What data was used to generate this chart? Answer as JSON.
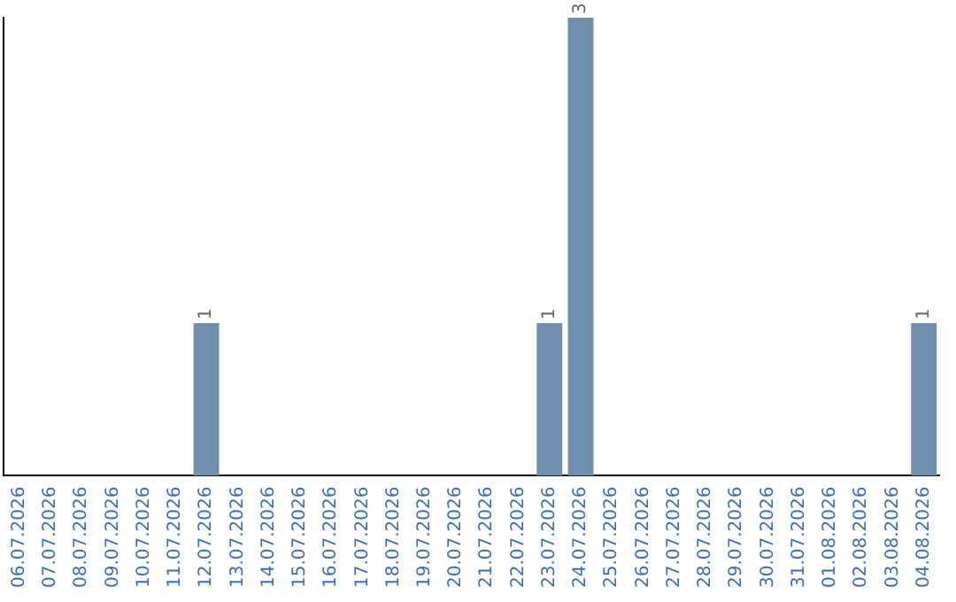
{
  "chart_data": {
    "type": "bar",
    "categories": [
      "06.07.2026",
      "07.07.2026",
      "08.07.2026",
      "09.07.2026",
      "10.07.2026",
      "11.07.2026",
      "12.07.2026",
      "13.07.2026",
      "14.07.2026",
      "15.07.2026",
      "16.07.2026",
      "17.07.2026",
      "18.07.2026",
      "19.07.2026",
      "20.07.2026",
      "21.07.2026",
      "22.07.2026",
      "23.07.2026",
      "24.07.2026",
      "25.07.2026",
      "26.07.2026",
      "27.07.2026",
      "28.07.2026",
      "29.07.2026",
      "30.07.2026",
      "31.07.2026",
      "01.08.2026",
      "02.08.2026",
      "03.08.2026",
      "04.08.2026"
    ],
    "values": [
      0,
      0,
      0,
      0,
      0,
      0,
      1,
      0,
      0,
      0,
      0,
      0,
      0,
      0,
      0,
      0,
      0,
      1,
      3,
      0,
      0,
      0,
      0,
      0,
      0,
      0,
      0,
      0,
      0,
      1
    ],
    "value_labels": [
      null,
      null,
      null,
      null,
      null,
      null,
      "1",
      null,
      null,
      null,
      null,
      null,
      null,
      null,
      null,
      null,
      null,
      "1",
      "3",
      null,
      null,
      null,
      null,
      null,
      null,
      null,
      null,
      null,
      null,
      "1"
    ],
    "color": "#6f8fae",
    "ylim": [
      0,
      3
    ],
    "tick_labels": "x",
    "grid": false,
    "legend": false
  }
}
